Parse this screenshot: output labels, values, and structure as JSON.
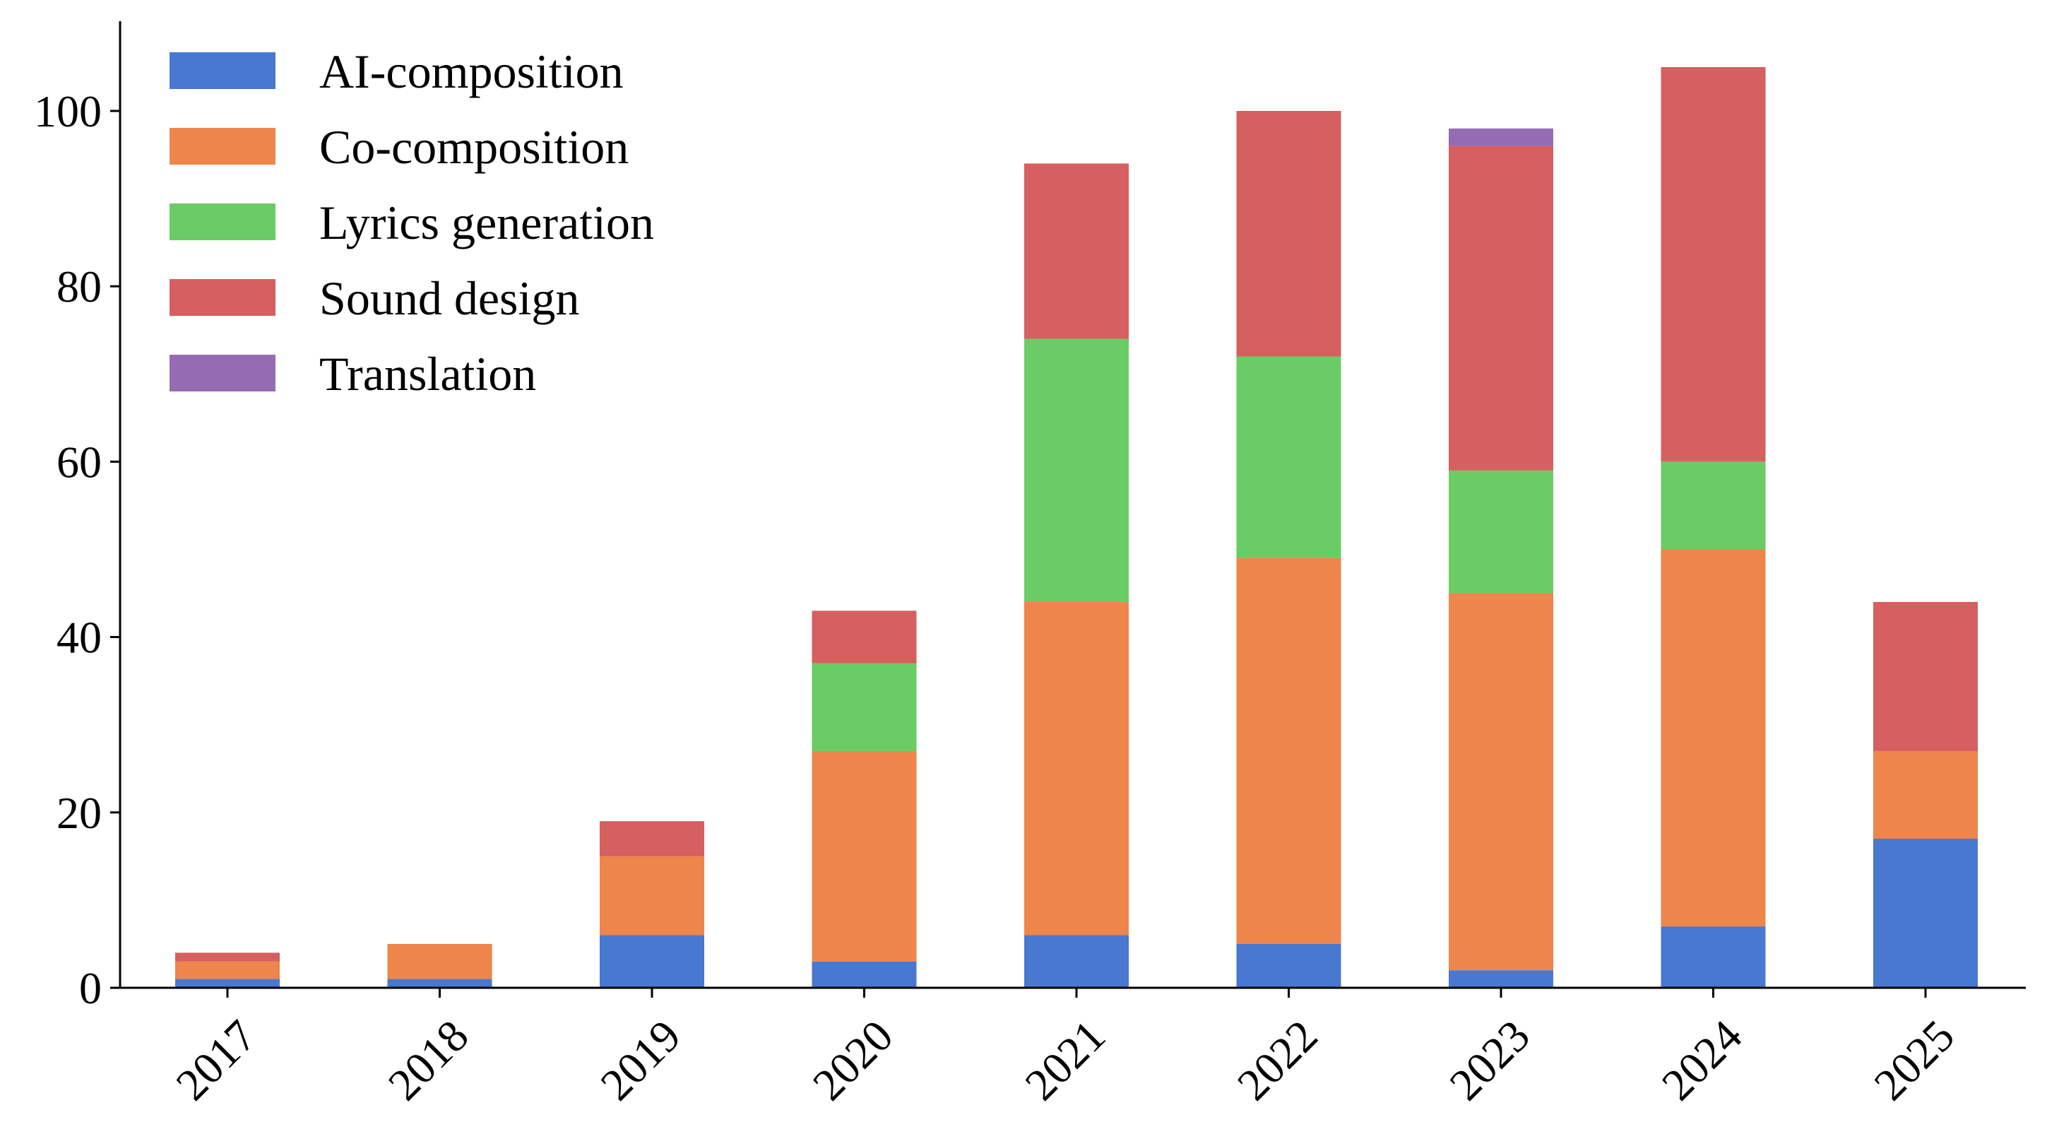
{
  "chart_data": {
    "type": "bar",
    "stacked": true,
    "title": "",
    "xlabel": "",
    "ylabel": "",
    "categories": [
      "2017",
      "2018",
      "2019",
      "2020",
      "2021",
      "2022",
      "2023",
      "2024",
      "2025"
    ],
    "ylim": [
      0,
      110
    ],
    "yticks": [
      0,
      20,
      40,
      60,
      80,
      100
    ],
    "grid": false,
    "legend": "top-left",
    "series": [
      {
        "name": "AI-composition",
        "color": "#4878d0",
        "values": [
          1,
          1,
          6,
          3,
          6,
          5,
          2,
          7,
          17
        ]
      },
      {
        "name": "Co-composition",
        "color": "#ee854a",
        "values": [
          2,
          4,
          9,
          24,
          38,
          44,
          43,
          43,
          10
        ]
      },
      {
        "name": "Lyrics generation",
        "color": "#6acc64",
        "values": [
          0,
          0,
          0,
          10,
          30,
          23,
          14,
          10,
          0
        ]
      },
      {
        "name": "Sound design",
        "color": "#d65f5f",
        "values": [
          1,
          0,
          4,
          6,
          20,
          28,
          37,
          45,
          17
        ]
      },
      {
        "name": "Translation",
        "color": "#956cb4",
        "values": [
          0,
          0,
          0,
          0,
          0,
          0,
          2,
          0,
          0
        ]
      }
    ]
  }
}
